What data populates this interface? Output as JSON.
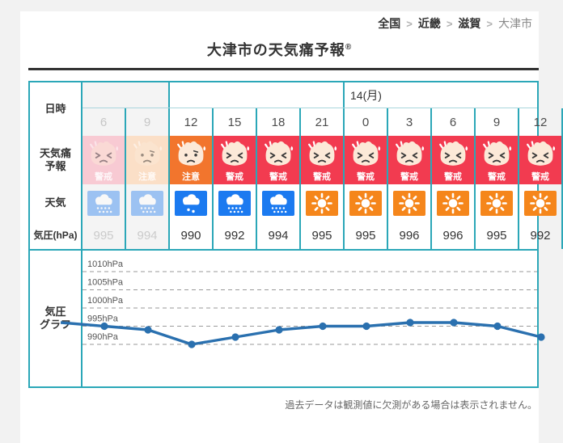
{
  "breadcrumb": {
    "separator": ">",
    "items": [
      {
        "label": "全国",
        "current": false
      },
      {
        "label": "近畿",
        "current": false
      },
      {
        "label": "滋賀",
        "current": false
      },
      {
        "label": "大津市",
        "current": true
      }
    ]
  },
  "title": {
    "text": "大津市の天気痛予報",
    "mark": "®"
  },
  "table": {
    "row_headers": {
      "datetime": "日時",
      "forecast": "天気痛\n予報",
      "weather": "天気",
      "pressure": "気圧(hPa)",
      "graph": "気圧\nグラフ"
    },
    "day_row": {
      "past_cols": 2,
      "groups": [
        {
          "label": "",
          "cols": 6
        },
        {
          "label": "14(月)",
          "cols": 5
        }
      ]
    },
    "columns": [
      {
        "hour": "6",
        "past": true,
        "forecast": {
          "label": "警戒",
          "level": "warning"
        },
        "weather": "rain",
        "pressure": "995"
      },
      {
        "hour": "9",
        "past": true,
        "forecast": {
          "label": "注意",
          "level": "caution"
        },
        "weather": "rain",
        "pressure": "994"
      },
      {
        "hour": "12",
        "past": false,
        "forecast": {
          "label": "注意",
          "level": "caution"
        },
        "weather": "rain-light",
        "pressure": "990"
      },
      {
        "hour": "15",
        "past": false,
        "forecast": {
          "label": "警戒",
          "level": "warning"
        },
        "weather": "rain",
        "pressure": "992"
      },
      {
        "hour": "18",
        "past": false,
        "forecast": {
          "label": "警戒",
          "level": "warning"
        },
        "weather": "rain",
        "pressure": "994"
      },
      {
        "hour": "21",
        "past": false,
        "forecast": {
          "label": "警戒",
          "level": "warning"
        },
        "weather": "sun",
        "pressure": "995"
      },
      {
        "hour": "0",
        "past": false,
        "forecast": {
          "label": "警戒",
          "level": "warning"
        },
        "weather": "sun",
        "pressure": "995"
      },
      {
        "hour": "3",
        "past": false,
        "forecast": {
          "label": "警戒",
          "level": "warning"
        },
        "weather": "sun",
        "pressure": "996"
      },
      {
        "hour": "6",
        "past": false,
        "forecast": {
          "label": "警戒",
          "level": "warning"
        },
        "weather": "sun",
        "pressure": "996"
      },
      {
        "hour": "9",
        "past": false,
        "forecast": {
          "label": "警戒",
          "level": "warning"
        },
        "weather": "sun",
        "pressure": "995"
      },
      {
        "hour": "12",
        "past": false,
        "forecast": {
          "label": "警戒",
          "level": "warning"
        },
        "weather": "sun",
        "pressure": "992"
      }
    ]
  },
  "chart_data": {
    "type": "line",
    "title": "気圧グラフ",
    "x_hours": [
      "6",
      "9",
      "12",
      "15",
      "18",
      "21",
      "0",
      "3",
      "6",
      "9",
      "12"
    ],
    "series": [
      {
        "name": "気圧(hPa)",
        "values": [
          995,
          994,
          990,
          992,
          994,
          995,
          995,
          996,
          996,
          995,
          992
        ]
      }
    ],
    "lead_in_value": 996,
    "gridlines": [
      1010,
      1005,
      1000,
      995,
      990
    ],
    "gridline_unit": "hPa",
    "ylim": [
      987,
      1013
    ],
    "grid": true,
    "legend_position": "none"
  },
  "note": "過去データは観測値に欠測がある場合は表示されません。",
  "colors": {
    "accent_border": "#2BA7B8",
    "warning_red": "#F23B50",
    "warning_red_past": "#F8CAD3",
    "caution_orange": "#F2752D",
    "caution_orange_past": "#FBDFC7",
    "rain_blue": "#1B7AF0",
    "sun_orange": "#F5861B",
    "face_skin": "#FCE9D8",
    "graph_line": "#2A70AF",
    "grid_gray": "#9A9A9A",
    "past_bg": "#F4F4F4",
    "title_rule": "#333333",
    "page_bg": "#F2F2F2"
  }
}
